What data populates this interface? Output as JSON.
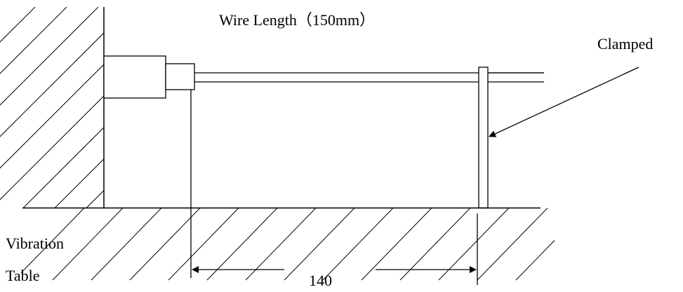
{
  "labels": {
    "wire_length": "Wire Length（150mm）",
    "clamped": "Clamped",
    "vibration": "Vibration",
    "table": "Table",
    "dimension": "140"
  },
  "colors": {
    "stroke": "#000000",
    "background": "#ffffff"
  }
}
